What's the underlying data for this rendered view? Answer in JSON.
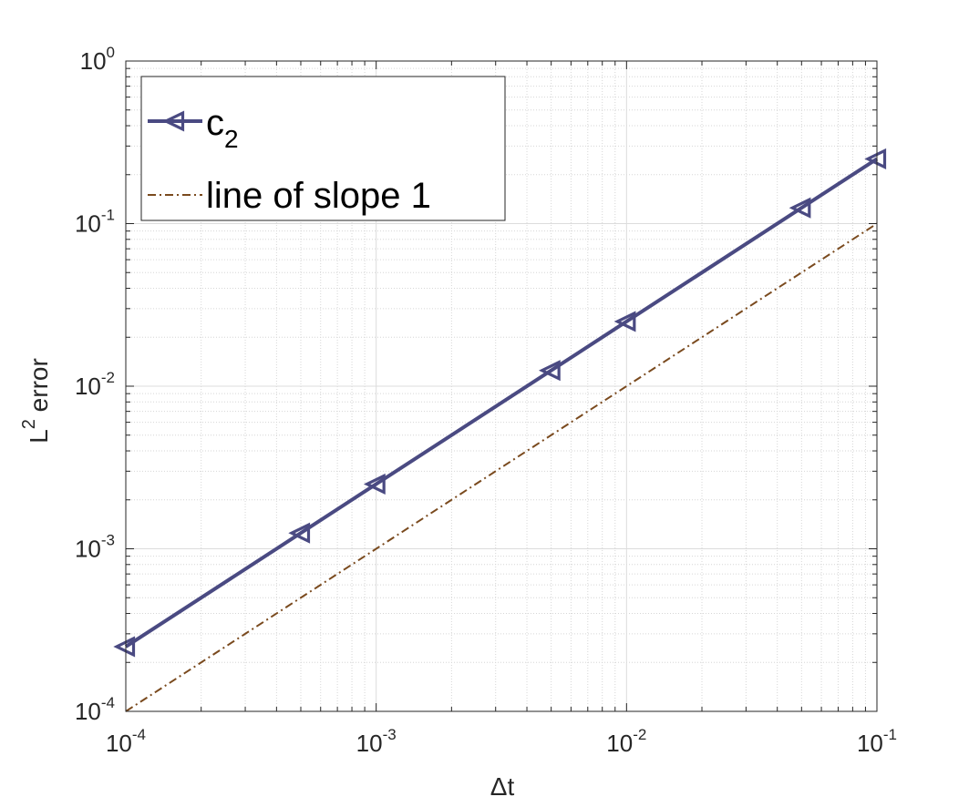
{
  "chart_data": {
    "type": "line",
    "xscale": "log",
    "yscale": "log",
    "xlim": [
      0.0001,
      0.1
    ],
    "ylim": [
      0.0001,
      1
    ],
    "xlabel": "Δt",
    "ylabel": {
      "base": "L",
      "superscript": "2",
      "rest": " error"
    },
    "grid": true,
    "minor_grid": true,
    "legend_location": "top-left",
    "x_ticks": [
      {
        "base": "10",
        "exp": "-4"
      },
      {
        "base": "10",
        "exp": "-3"
      },
      {
        "base": "10",
        "exp": "-2"
      },
      {
        "base": "10",
        "exp": "-1"
      }
    ],
    "y_ticks": [
      {
        "base": "10",
        "exp": "-4"
      },
      {
        "base": "10",
        "exp": "-3"
      },
      {
        "base": "10",
        "exp": "-2"
      },
      {
        "base": "10",
        "exp": "-1"
      },
      {
        "base": "10",
        "exp": "0"
      }
    ],
    "series": [
      {
        "name": "c",
        "name_subscript": "2",
        "color": "#4a4a82",
        "line_style": "solid",
        "marker": "triangle-left",
        "x": [
          0.0001,
          0.0005,
          0.001,
          0.005,
          0.01,
          0.05,
          0.1
        ],
        "y": [
          0.00025,
          0.00125,
          0.0025,
          0.0125,
          0.025,
          0.125,
          0.25
        ]
      },
      {
        "name": "line of slope 1",
        "color": "#7a4a1e",
        "line_style": "dash-dot",
        "marker": "none",
        "x": [
          0.0001,
          0.1
        ],
        "y": [
          0.0001,
          0.1
        ]
      }
    ]
  }
}
